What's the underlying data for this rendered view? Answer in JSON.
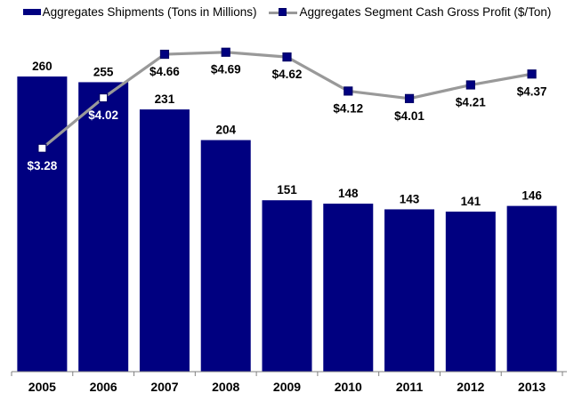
{
  "chart_data": {
    "type": "combo-bar-line",
    "categories": [
      "2005",
      "2006",
      "2007",
      "2008",
      "2009",
      "2010",
      "2011",
      "2012",
      "2013"
    ],
    "series": [
      {
        "name": "Aggregates Shipments (Tons in Millions)",
        "type": "bar",
        "axis": "primary",
        "values": [
          260,
          255,
          231,
          204,
          151,
          148,
          143,
          141,
          146
        ],
        "value_labels": [
          "260",
          "255",
          "231",
          "204",
          "151",
          "148",
          "143",
          "141",
          "146"
        ],
        "color": "#000080"
      },
      {
        "name": "Aggregates Segment Cash Gross Profit ($/Ton)",
        "type": "line",
        "axis": "secondary",
        "values": [
          3.28,
          4.02,
          4.66,
          4.69,
          4.62,
          4.12,
          4.01,
          4.21,
          4.37
        ],
        "value_labels": [
          "$3.28",
          "$4.02",
          "$4.66",
          "$4.69",
          "$4.62",
          "$4.12",
          "$4.01",
          "$4.21",
          "$4.37"
        ],
        "line_color": "#999999",
        "marker_color": "#000080",
        "marker_border_color": "#000066",
        "overlap_marker_fill": "#ffffff",
        "overlap_label_color": "#ffffff"
      }
    ],
    "primary_ylim": [
      0,
      300
    ],
    "secondary_ylim": [
      0,
      5
    ],
    "grid": false,
    "legend_position": "top",
    "axis_color": "#808080",
    "label_color": "#000000",
    "background": "#ffffff",
    "title": "",
    "xlabel": "",
    "ylabel": ""
  }
}
